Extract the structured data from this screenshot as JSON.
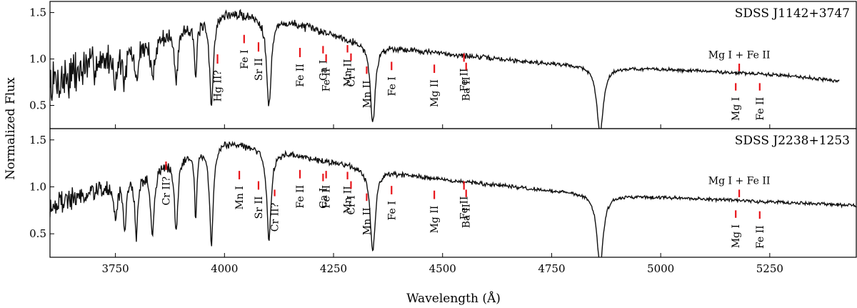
{
  "chart_data": {
    "type": "line",
    "xlabel": "Wavelength (Å)",
    "ylabel": "Normalized Flux",
    "xlim": [
      3600,
      5450
    ],
    "x_ticks": [
      3750,
      4000,
      4250,
      4500,
      4750,
      5000,
      5250
    ],
    "line_color": "#111111",
    "marker_color": "#e8141a",
    "panels": [
      {
        "title": "SDSS J1142+3747",
        "ylim": [
          0.25,
          1.62
        ],
        "y_ticks": [
          "0.5",
          "1.0",
          "1.5"
        ],
        "continuum": [
          [
            3600,
            0.72
          ],
          [
            3700,
            0.95
          ],
          [
            3800,
            1.15
          ],
          [
            3900,
            1.35
          ],
          [
            4000,
            1.5
          ],
          [
            4050,
            1.48
          ],
          [
            4150,
            1.4
          ],
          [
            4300,
            1.2
          ],
          [
            4400,
            1.12
          ],
          [
            4500,
            1.06
          ],
          [
            4700,
            0.97
          ],
          [
            4900,
            0.91
          ],
          [
            5100,
            0.87
          ],
          [
            5300,
            0.82
          ],
          [
            5410,
            0.76
          ]
        ],
        "absorption_lines": [
          {
            "center": 3970,
            "depth": 0.95,
            "width": 5
          },
          {
            "center": 3889,
            "depth": 0.55,
            "width": 5
          },
          {
            "center": 3835,
            "depth": 0.45,
            "width": 5
          },
          {
            "center": 3798,
            "depth": 0.4,
            "width": 4
          },
          {
            "center": 3771,
            "depth": 0.35,
            "width": 4
          },
          {
            "center": 3750,
            "depth": 0.3,
            "width": 4
          },
          {
            "center": 3934,
            "depth": 0.65,
            "width": 3
          },
          {
            "center": 4102,
            "depth": 0.95,
            "width": 6
          },
          {
            "center": 4340,
            "depth": 0.85,
            "width": 7
          },
          {
            "center": 4861,
            "depth": 0.72,
            "width": 9
          }
        ],
        "noise_amp": [
          [
            3600,
            0.25
          ],
          [
            3750,
            0.12
          ],
          [
            3950,
            0.05
          ],
          [
            4300,
            0.03
          ],
          [
            4800,
            0.015
          ],
          [
            5400,
            0.015
          ]
        ],
        "seed": 7,
        "annotations": [
          {
            "label": "Hg II?",
            "wavelength": 3984,
            "y0": 0.95,
            "y1": 1.05,
            "text_y": 0.88
          },
          {
            "label": "Fe I",
            "wavelength": 4045,
            "y0": 1.17,
            "y1": 1.26,
            "text_y": 1.1
          },
          {
            "label": "Sr II",
            "wavelength": 4078,
            "y0": 1.08,
            "y1": 1.18,
            "text_y": 1.01
          },
          {
            "label": "Fe II",
            "wavelength": 4173,
            "y0": 1.02,
            "y1": 1.12,
            "text_y": 0.95
          },
          {
            "label": "Ca I",
            "wavelength": 4226,
            "y0": 1.06,
            "y1": 1.14,
            "text_y": 0.99
          },
          {
            "label": "Fe II",
            "wavelength": 4233,
            "y0": 0.97,
            "y1": 1.05,
            "text_y": 0.9
          },
          {
            "label": "Mn II",
            "wavelength": 4282,
            "y0": 1.07,
            "y1": 1.15,
            "text_y": 1.0
          },
          {
            "label": "Cr I",
            "wavelength": 4290,
            "y0": 0.98,
            "y1": 1.06,
            "text_y": 0.91
          },
          {
            "label": "Mn II",
            "wavelength": 4326,
            "y0": 0.84,
            "y1": 0.92,
            "text_y": 0.77
          },
          {
            "label": "Fe I",
            "wavelength": 4383,
            "y0": 0.88,
            "y1": 0.97,
            "text_y": 0.81
          },
          {
            "label": "Mg II",
            "wavelength": 4481,
            "y0": 0.85,
            "y1": 0.94,
            "text_y": 0.78
          },
          {
            "label": "Fe II",
            "wavelength": 4549,
            "y0": 0.97,
            "y1": 1.06,
            "text_y": 0.9
          },
          {
            "label": "Ba II",
            "wavelength": 4554,
            "y0": 0.88,
            "y1": 0.96,
            "text_y": 0.81
          },
          {
            "label": "Mg I",
            "wavelength": 5172,
            "y0": 0.66,
            "y1": 0.74,
            "text_y": 0.59
          },
          {
            "label": "Fe II",
            "wavelength": 5227,
            "y0": 0.66,
            "y1": 0.74,
            "text_y": 0.59
          }
        ],
        "blend_label": {
          "label": "Mg I + Fe II",
          "wavelength": 5180,
          "y0": 0.87,
          "y1": 0.95,
          "text_y": 1.01
        }
      },
      {
        "title": "SDSS J2238+1253",
        "ylim": [
          0.25,
          1.62
        ],
        "y_ticks": [
          "0.5",
          "1.0",
          "1.5"
        ],
        "continuum": [
          [
            3600,
            0.8
          ],
          [
            3700,
            0.95
          ],
          [
            3800,
            1.12
          ],
          [
            3900,
            1.35
          ],
          [
            4000,
            1.48
          ],
          [
            4050,
            1.45
          ],
          [
            4150,
            1.35
          ],
          [
            4300,
            1.22
          ],
          [
            4400,
            1.14
          ],
          [
            4500,
            1.08
          ],
          [
            4700,
            0.98
          ],
          [
            4900,
            0.91
          ],
          [
            5100,
            0.87
          ],
          [
            5300,
            0.83
          ],
          [
            5450,
            0.8
          ]
        ],
        "absorption_lines": [
          {
            "center": 3970,
            "depth": 1.05,
            "width": 5
          },
          {
            "center": 3889,
            "depth": 0.8,
            "width": 5
          },
          {
            "center": 3835,
            "depth": 0.7,
            "width": 5
          },
          {
            "center": 3798,
            "depth": 0.6,
            "width": 4
          },
          {
            "center": 3771,
            "depth": 0.5,
            "width": 4
          },
          {
            "center": 3750,
            "depth": 0.4,
            "width": 4
          },
          {
            "center": 3934,
            "depth": 0.7,
            "width": 3
          },
          {
            "center": 4102,
            "depth": 0.95,
            "width": 6
          },
          {
            "center": 4340,
            "depth": 0.88,
            "width": 7
          },
          {
            "center": 4861,
            "depth": 0.75,
            "width": 9
          }
        ],
        "noise_amp": [
          [
            3600,
            0.12
          ],
          [
            3750,
            0.06
          ],
          [
            3950,
            0.035
          ],
          [
            4300,
            0.025
          ],
          [
            4800,
            0.015
          ],
          [
            5400,
            0.015
          ]
        ],
        "seed": 19,
        "annotations": [
          {
            "label": "Cr II?",
            "wavelength": 3866,
            "y0": 1.18,
            "y1": 1.27,
            "text_y": 1.11
          },
          {
            "label": "Mn I",
            "wavelength": 4034,
            "y0": 1.08,
            "y1": 1.17,
            "text_y": 1.01
          },
          {
            "label": "Sr II",
            "wavelength": 4078,
            "y0": 0.97,
            "y1": 1.06,
            "text_y": 0.9
          },
          {
            "label": "Cr II?",
            "wavelength": 4115,
            "y0": 0.9,
            "y1": 0.97,
            "text_y": 0.83
          },
          {
            "label": "Fe II",
            "wavelength": 4173,
            "y0": 1.09,
            "y1": 1.18,
            "text_y": 1.02
          },
          {
            "label": "Ca I",
            "wavelength": 4226,
            "y0": 1.06,
            "y1": 1.14,
            "text_y": 0.99
          },
          {
            "label": "Fe II",
            "wavelength": 4233,
            "y0": 1.09,
            "y1": 1.17,
            "text_y": 1.02
          },
          {
            "label": "Mn II",
            "wavelength": 4282,
            "y0": 1.08,
            "y1": 1.16,
            "text_y": 1.01
          },
          {
            "label": "Cr I",
            "wavelength": 4290,
            "y0": 0.98,
            "y1": 1.06,
            "text_y": 0.91
          },
          {
            "label": "Mn II",
            "wavelength": 4326,
            "y0": 0.85,
            "y1": 0.93,
            "text_y": 0.78
          },
          {
            "label": "Fe I",
            "wavelength": 4383,
            "y0": 0.92,
            "y1": 1.01,
            "text_y": 0.85
          },
          {
            "label": "Mg II",
            "wavelength": 4481,
            "y0": 0.87,
            "y1": 0.96,
            "text_y": 0.8
          },
          {
            "label": "Fe II",
            "wavelength": 4549,
            "y0": 0.97,
            "y1": 1.06,
            "text_y": 0.9
          },
          {
            "label": "Ba II",
            "wavelength": 4554,
            "y0": 0.89,
            "y1": 0.97,
            "text_y": 0.82
          },
          {
            "label": "Mg I",
            "wavelength": 5172,
            "y0": 0.67,
            "y1": 0.75,
            "text_y": 0.6
          },
          {
            "label": "Fe II",
            "wavelength": 5227,
            "y0": 0.66,
            "y1": 0.74,
            "text_y": 0.59
          }
        ],
        "blend_label": {
          "label": "Mg I + Fe II",
          "wavelength": 5180,
          "y0": 0.89,
          "y1": 0.97,
          "text_y": 1.03
        }
      }
    ]
  }
}
